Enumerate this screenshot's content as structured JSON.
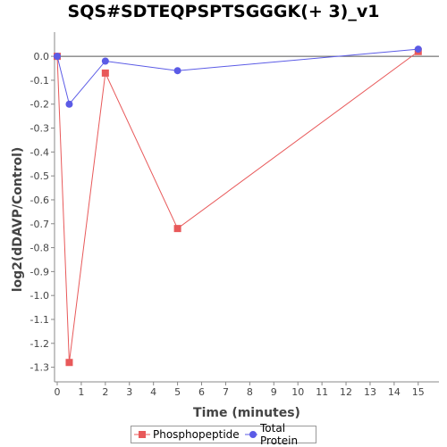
{
  "chart_data": {
    "type": "line",
    "title": "SQS#SDTEQPSPTSGGGK(+ 3)_v1",
    "xlabel": "Time (minutes)",
    "ylabel": "log2(dDAVP/Control)",
    "xlim": [
      0,
      15.75
    ],
    "ylim": [
      -1.35,
      0.09
    ],
    "xticks": [
      0,
      1,
      2,
      3,
      4,
      5,
      6,
      7,
      8,
      9,
      10,
      11,
      12,
      13,
      14,
      15
    ],
    "yticks": [
      0.0,
      -0.1,
      -0.2,
      -0.3,
      -0.4,
      -0.5,
      -0.6,
      -0.7,
      -0.8,
      -0.9,
      -1.0,
      -1.1,
      -1.2,
      -1.3
    ],
    "ytick_labels": [
      "0.0",
      "-0.1",
      "-0.2",
      "-0.3",
      "-0.4",
      "-0.5",
      "-0.6",
      "-0.7",
      "-0.8",
      "-0.9",
      "-1.0",
      "-1.1",
      "-1.2",
      "-1.3"
    ],
    "zero_line": true,
    "legend_position": "bottom",
    "series": [
      {
        "name": "Phosphopeptide",
        "color": "#e8595a",
        "marker": "square",
        "x": [
          0,
          0.5,
          2,
          5,
          15
        ],
        "y": [
          0.0,
          -1.28,
          -0.07,
          -0.72,
          0.02
        ]
      },
      {
        "name": "Total Protein",
        "color": "#5b5be6",
        "marker": "circle",
        "x": [
          0,
          0.5,
          2,
          5,
          15
        ],
        "y": [
          0.0,
          -0.2,
          -0.02,
          -0.06,
          0.03
        ]
      }
    ]
  }
}
